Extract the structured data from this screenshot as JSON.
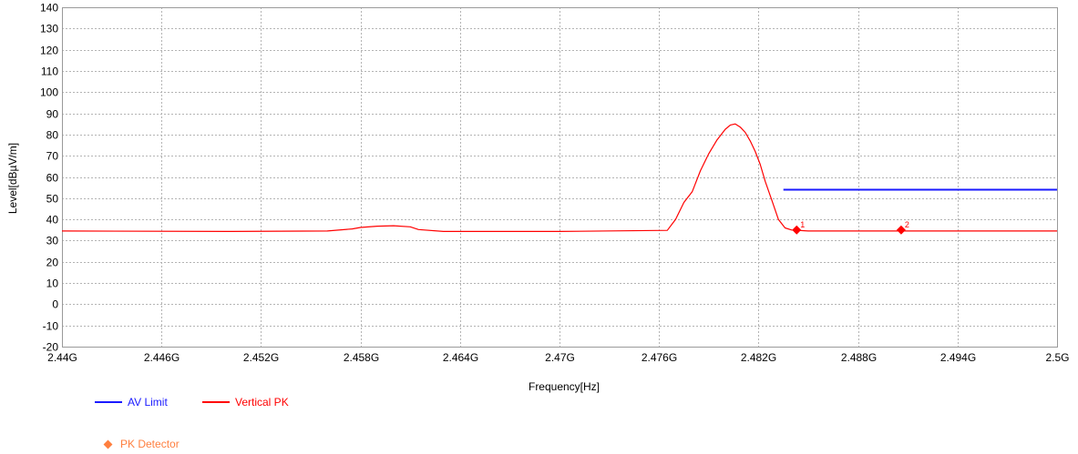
{
  "chart_data": {
    "type": "line",
    "xlabel": "Frequency[Hz]",
    "ylabel": "Level[dBµV/m]",
    "xlim": [
      2.44,
      2.5
    ],
    "ylim": [
      -20,
      140
    ],
    "x_ticks": [
      2.44,
      2.446,
      2.452,
      2.458,
      2.464,
      2.47,
      2.476,
      2.482,
      2.488,
      2.494,
      2.5
    ],
    "x_tick_labels": [
      "2.44G",
      "2.446G",
      "2.452G",
      "2.458G",
      "2.464G",
      "2.47G",
      "2.476G",
      "2.482G",
      "2.488G",
      "2.494G",
      "2.5G"
    ],
    "y_ticks": [
      -20,
      -10,
      0,
      10,
      20,
      30,
      40,
      50,
      60,
      70,
      80,
      90,
      100,
      110,
      120,
      130,
      140
    ],
    "y_tick_labels": [
      "-20",
      "-10",
      "0",
      "10",
      "20",
      "30",
      "40",
      "50",
      "60",
      "70",
      "80",
      "90",
      "100",
      "110",
      "120",
      "130",
      "140"
    ],
    "grid": true,
    "series": [
      {
        "name": "AV Limit",
        "color": "#1a1aff",
        "x": [
          2.4835,
          2.5
        ],
        "y": [
          54,
          54
        ]
      },
      {
        "name": "Vertical PK",
        "color": "#ff0000",
        "x": [
          2.44,
          2.45,
          2.456,
          2.4575,
          2.458,
          2.459,
          2.46,
          2.461,
          2.4615,
          2.463,
          2.47,
          2.4765,
          2.477,
          2.4775,
          2.478,
          2.4785,
          2.479,
          2.4795,
          2.48,
          2.4803,
          2.4806,
          2.4809,
          2.4812,
          2.4815,
          2.4818,
          2.4821,
          2.4824,
          2.4828,
          2.4832,
          2.4836,
          2.484,
          2.485,
          2.49,
          2.5
        ],
        "y": [
          34.5,
          34.3,
          34.5,
          35.5,
          36.2,
          36.8,
          37,
          36.5,
          35.2,
          34.3,
          34.3,
          34.8,
          40,
          48,
          53,
          63,
          71,
          77.5,
          82.5,
          84.5,
          85,
          83.5,
          81,
          77,
          72,
          66,
          58,
          49,
          40,
          36,
          35,
          34.5,
          34.5,
          34.5
        ]
      }
    ],
    "markers": [
      {
        "label": "1",
        "x": 2.4843,
        "y": 35
      },
      {
        "label": "2",
        "x": 2.4906,
        "y": 35
      }
    ],
    "marker_color": "#ff0000",
    "legend": [
      {
        "label": "AV Limit",
        "color": "#1a1aff"
      },
      {
        "label": "Vertical PK",
        "color": "#ff0000"
      },
      {
        "label": "PK Detector",
        "color": "#ff7f3f"
      }
    ],
    "legend_position": "bottom-left"
  }
}
